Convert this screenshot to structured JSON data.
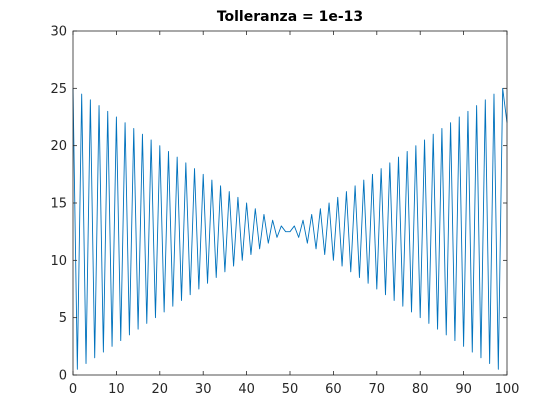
{
  "chart_data": {
    "type": "line",
    "title": "Tolleranza = 1e-13",
    "xlabel": "",
    "ylabel": "",
    "xlim": [
      0,
      100
    ],
    "ylim": [
      0,
      30
    ],
    "x_ticks": [
      0,
      10,
      20,
      30,
      40,
      50,
      60,
      70,
      80,
      90,
      100
    ],
    "y_ticks": [
      0,
      5,
      10,
      15,
      20,
      25,
      30
    ],
    "grid": false,
    "box": true,
    "line_color": "#0072BD",
    "series": [
      {
        "x": [
          0,
          1,
          2,
          3,
          4,
          5,
          6,
          7,
          8,
          9,
          10,
          11,
          12,
          13,
          14,
          15,
          16,
          17,
          18,
          19,
          20,
          21,
          22,
          23,
          24,
          25,
          26,
          27,
          28,
          29,
          30,
          31,
          32,
          33,
          34,
          35,
          36,
          37,
          38,
          39,
          40,
          41,
          42,
          43,
          44,
          45,
          46,
          47,
          48,
          49,
          50,
          51,
          52,
          53,
          54,
          55,
          56,
          57,
          58,
          59,
          60,
          61,
          62,
          63,
          64,
          65,
          66,
          67,
          68,
          69,
          70,
          71,
          72,
          73,
          74,
          75,
          76,
          77,
          78,
          79,
          80,
          81,
          82,
          83,
          84,
          85,
          86,
          87,
          88,
          89,
          90,
          91,
          92,
          93,
          94,
          95,
          96,
          97,
          98,
          99,
          100
        ],
        "y": [
          25,
          0.5,
          24.5,
          1,
          24,
          1.5,
          23.5,
          2,
          23,
          2.5,
          22.5,
          3,
          22,
          3.5,
          21.5,
          4,
          21,
          4.5,
          20.5,
          5,
          20,
          5.5,
          19.5,
          6,
          19,
          6.5,
          18.5,
          7,
          18,
          7.5,
          17.5,
          8,
          17,
          8.5,
          16.5,
          9,
          16,
          9.5,
          15.5,
          10,
          15,
          10.5,
          14.5,
          11,
          14,
          11.5,
          13.5,
          12,
          13,
          12.5,
          12.5,
          13,
          12,
          13.5,
          11.5,
          14,
          11,
          14.5,
          10.5,
          15,
          10,
          15.5,
          9.5,
          16,
          9,
          16.5,
          8.5,
          17,
          8,
          17.5,
          7.5,
          18,
          7,
          18.5,
          6.5,
          19,
          6,
          19.5,
          5.5,
          20,
          5,
          20.5,
          4.5,
          21,
          4,
          21.5,
          3.5,
          22,
          3,
          22.5,
          2.5,
          23,
          2,
          23.5,
          1.5,
          24,
          1,
          24.5,
          0.5,
          25,
          22
        ]
      }
    ]
  }
}
